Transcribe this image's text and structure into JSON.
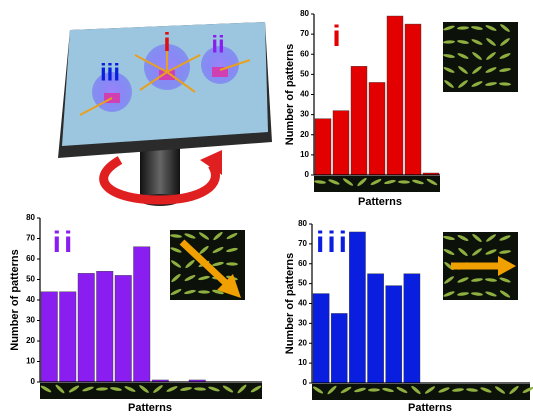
{
  "illustration": {
    "labels": [
      "i",
      "ii",
      "iii"
    ]
  },
  "chart_data": [
    {
      "type": "bar",
      "annotation": "i",
      "color": "#e30000",
      "x_label": "Patterns",
      "y_label": "Number of patterns",
      "categories": [
        null,
        null,
        null,
        null,
        null,
        null,
        null
      ],
      "values": [
        28,
        32,
        54,
        46,
        79,
        75,
        1
      ],
      "ylim": [
        0,
        80
      ],
      "yticks": [
        0,
        10,
        20,
        30,
        40,
        50,
        60,
        70,
        80
      ]
    },
    {
      "type": "bar",
      "annotation": "ii",
      "color": "#8a1ef0",
      "x_label": "Patterns",
      "y_label": "Number of patterns",
      "categories": [
        null,
        null,
        null,
        null,
        null,
        null,
        null,
        null,
        null,
        null,
        null,
        null
      ],
      "values": [
        44,
        44,
        53,
        54,
        52,
        66,
        1,
        null,
        1,
        null,
        null,
        null
      ],
      "ylim": [
        0,
        80
      ],
      "yticks": [
        0,
        10,
        20,
        30,
        40,
        50,
        60,
        70,
        80
      ]
    },
    {
      "type": "bar",
      "annotation": "iii",
      "color": "#0a1ee0",
      "x_label": "Patterns",
      "y_label": "Number of patterns",
      "categories": [
        null,
        null,
        null,
        null,
        null,
        null,
        null,
        null,
        null,
        null,
        null,
        null
      ],
      "values": [
        45,
        35,
        76,
        55,
        49,
        55,
        null,
        null,
        null,
        null,
        null,
        null
      ],
      "ylim": [
        0,
        80
      ],
      "yticks": [
        0,
        10,
        20,
        30,
        40,
        50,
        60,
        70,
        80
      ]
    }
  ]
}
